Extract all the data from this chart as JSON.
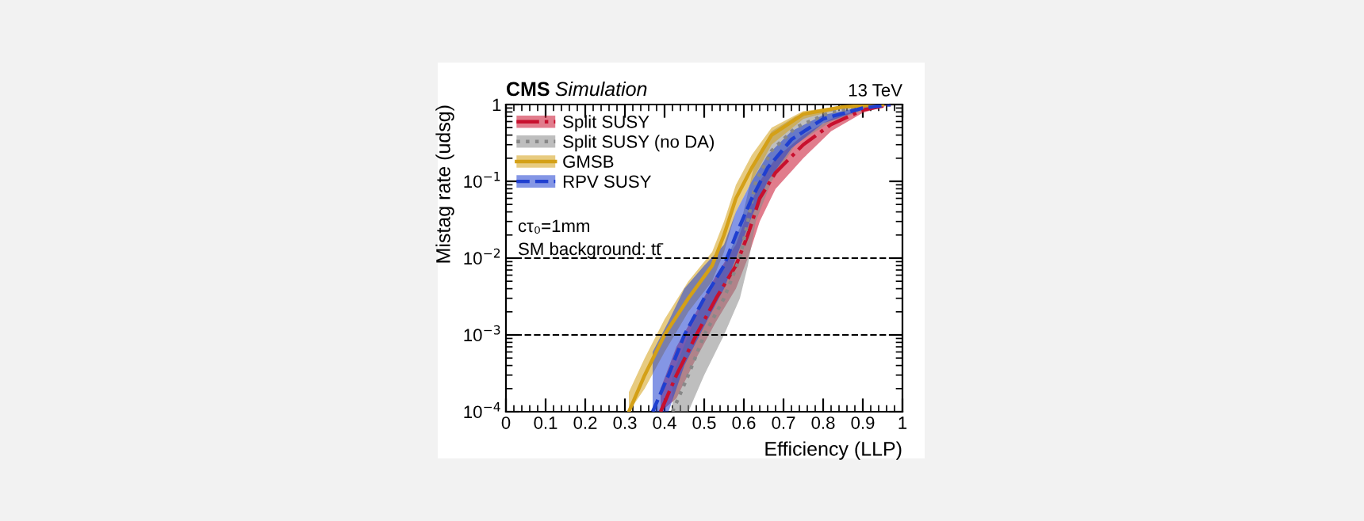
{
  "chart_data": {
    "type": "line",
    "title": "CMS",
    "subtitle": "Simulation",
    "xlabel": "Efficiency (LLP)",
    "ylabel": "Mistag rate (udsg)",
    "log": "y",
    "xlim": [
      0,
      1
    ],
    "ylim": [
      0.0001,
      1
    ],
    "xticks": [
      0,
      0.1,
      0.2,
      0.3,
      0.4,
      0.5,
      0.6,
      0.7,
      0.8,
      0.9,
      1
    ],
    "yticks": [
      {
        "value": 0.0001,
        "label": "10$^{−4}$"
      },
      {
        "value": 0.001,
        "label": "10$^{−3}$"
      },
      {
        "value": 0.01,
        "label": "10$^{−2}$"
      },
      {
        "value": 0.1,
        "label": "10$^{−1}$"
      },
      1
    ],
    "grid": false,
    "legend": "top left",
    "ref_lines": [
      {
        "axis": "y",
        "value": 0.01,
        "line_style": "dashed",
        "color": "#000000"
      },
      {
        "axis": "y",
        "value": 0.001,
        "line_style": "dashed",
        "color": "#000000"
      }
    ],
    "annotations": [
      "13 TeV",
      "cτ₀=1mm",
      "SM background: tt̄"
    ],
    "series": [
      {
        "name": "Split SUSY",
        "color": "#c8102e",
        "line_style": "dashdot",
        "x": [
          0.39,
          0.43,
          0.48,
          0.53,
          0.58,
          0.61,
          0.64,
          0.68,
          0.75,
          0.82,
          0.9,
          0.97
        ],
        "values": [
          0.0001,
          0.0003,
          0.001,
          0.003,
          0.008,
          0.02,
          0.06,
          0.13,
          0.3,
          0.55,
          0.85,
          1
        ],
        "lower": [
          0.0001,
          0.00015,
          0.0005,
          0.0015,
          0.004,
          0.01,
          0.03,
          0.08,
          0.2,
          0.45,
          0.78,
          1
        ],
        "upper": [
          0.0002,
          0.0007,
          0.002,
          0.006,
          0.015,
          0.04,
          0.1,
          0.2,
          0.4,
          0.65,
          0.9,
          1
        ]
      },
      {
        "name": "Split SUSY (no DA)",
        "color": "#888888",
        "line_style": "dotted",
        "x": [
          0.42,
          0.46,
          0.5,
          0.55,
          0.59,
          0.61,
          0.63,
          0.67,
          0.73,
          0.82,
          0.92,
          0.97
        ],
        "values": [
          0.0001,
          0.0003,
          0.001,
          0.003,
          0.01,
          0.03,
          0.1,
          0.25,
          0.5,
          0.8,
          0.95,
          1
        ],
        "lower": [
          0.0001,
          0.0001,
          0.0003,
          0.001,
          0.003,
          0.008,
          0.03,
          0.1,
          0.3,
          0.6,
          0.9,
          1
        ],
        "upper": [
          0.0003,
          0.001,
          0.003,
          0.008,
          0.025,
          0.07,
          0.2,
          0.45,
          0.7,
          0.9,
          0.98,
          1
        ]
      },
      {
        "name": "GMSB",
        "color": "#d4a017",
        "line_style": "solid",
        "x": [
          0.31,
          0.35,
          0.4,
          0.46,
          0.52,
          0.55,
          0.58,
          0.62,
          0.67,
          0.75,
          0.85,
          0.95
        ],
        "values": [
          0.0001,
          0.0003,
          0.001,
          0.003,
          0.008,
          0.02,
          0.06,
          0.15,
          0.4,
          0.75,
          0.93,
          1
        ],
        "lower": [
          0.0001,
          0.0002,
          0.0006,
          0.002,
          0.005,
          0.012,
          0.04,
          0.1,
          0.3,
          0.65,
          0.9,
          1
        ],
        "upper": [
          0.00018,
          0.0005,
          0.0016,
          0.005,
          0.012,
          0.03,
          0.09,
          0.22,
          0.5,
          0.82,
          0.96,
          1
        ]
      },
      {
        "name": "RPV SUSY",
        "color": "#1f3fd0",
        "line_style": "dashed",
        "x": [
          0.37,
          0.41,
          0.45,
          0.5,
          0.55,
          0.58,
          0.62,
          0.66,
          0.72,
          0.8,
          0.9,
          0.97
        ],
        "values": [
          0.0001,
          0.0003,
          0.001,
          0.003,
          0.008,
          0.02,
          0.06,
          0.15,
          0.35,
          0.65,
          0.9,
          1
        ],
        "lower": [
          0.0001,
          0.0001,
          0.0004,
          0.0013,
          0.004,
          0.01,
          0.035,
          0.1,
          0.27,
          0.57,
          0.86,
          1
        ],
        "upper": [
          0.0006,
          0.0015,
          0.004,
          0.008,
          0.015,
          0.04,
          0.1,
          0.22,
          0.45,
          0.73,
          0.93,
          1
        ]
      }
    ]
  }
}
